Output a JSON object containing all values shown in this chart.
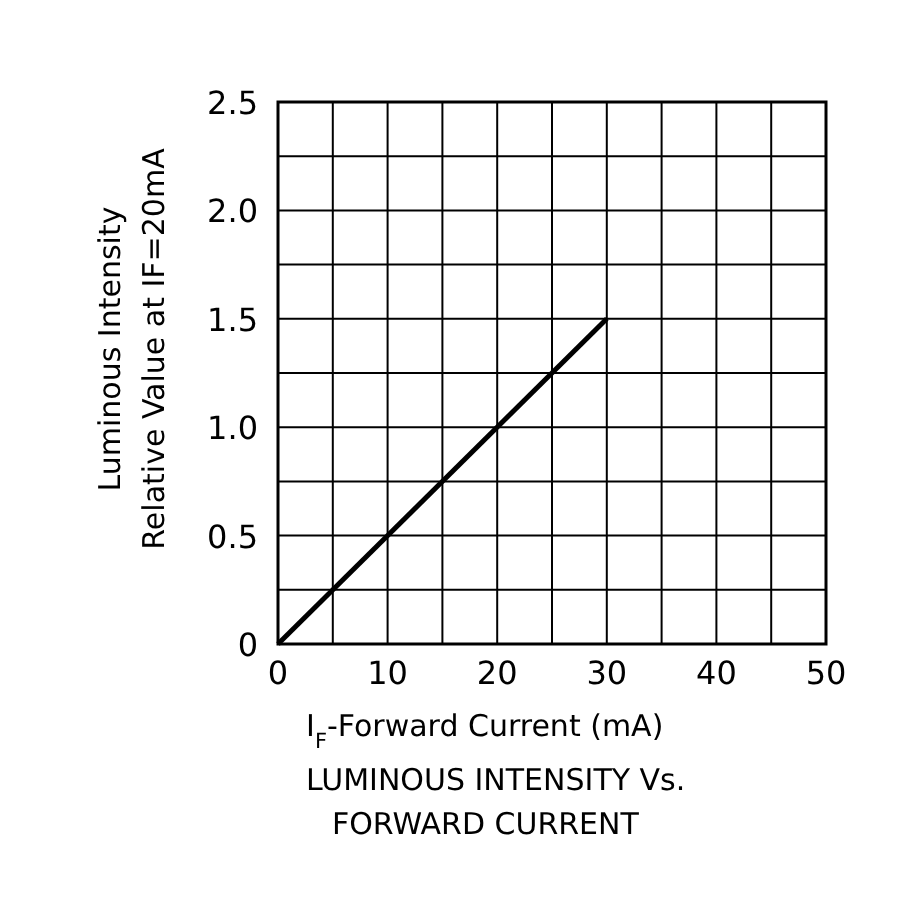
{
  "chart_data": {
    "type": "line",
    "title": "LUMINOUS INTENSITY Vs.\nFORWARD CURRENT",
    "xlabel": "I$_{F}$-Forward Current (mA)",
    "ylabel": "Luminous Intensity\nRelative Value at IF=20mA",
    "x": [
      0,
      30
    ],
    "series": [
      {
        "color": "#000000",
        "values": [
          0,
          1.5
        ]
      }
    ],
    "xlim": [
      0,
      50
    ],
    "xticks": [
      0,
      {
        "value": 5,
        "label": null
      },
      10,
      {
        "value": 15,
        "label": null
      },
      20,
      {
        "value": 25,
        "label": null
      },
      30,
      {
        "value": 35,
        "label": null
      },
      40,
      {
        "value": 45,
        "label": null
      },
      50
    ],
    "ylim": [
      0,
      2.5
    ],
    "yticks": [
      {
        "value": 0,
        "label": "0"
      },
      {
        "value": 0.25,
        "label": null
      },
      {
        "value": 0.5,
        "label": "0.5"
      },
      {
        "value": 0.75,
        "label": null
      },
      {
        "value": 1,
        "label": "1.0"
      },
      {
        "value": 1.25,
        "label": null
      },
      {
        "value": 1.5,
        "label": "1.5"
      },
      {
        "value": 1.75,
        "label": null
      },
      {
        "value": 2,
        "label": "2.0"
      },
      {
        "value": 2.25,
        "label": null
      },
      {
        "value": 2.5,
        "label": "2.5"
      }
    ],
    "grid": true,
    "marker": "none",
    "line_style": "solid"
  }
}
